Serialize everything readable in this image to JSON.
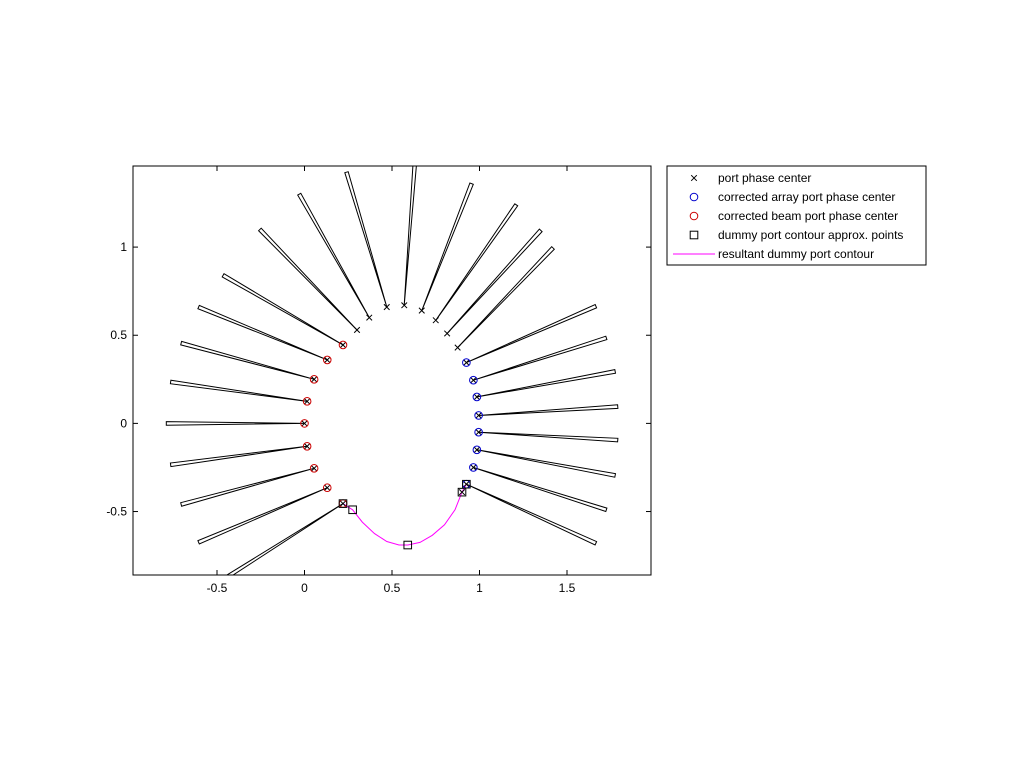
{
  "chart_data": {
    "type": "scatter",
    "title": "",
    "xlabel": "",
    "ylabel": "",
    "xlim": [
      -0.98,
      1.98
    ],
    "ylim": [
      -0.86,
      1.46
    ],
    "xticks": [
      -0.5,
      0,
      0.5,
      1,
      1.5
    ],
    "yticks": [
      -0.5,
      0,
      0.5,
      1
    ],
    "xtick_labels": [
      "-0.5",
      "0",
      "0.5",
      "1",
      "1.5"
    ],
    "ytick_labels": [
      "-0.5",
      "0",
      "0.5",
      "1"
    ],
    "grid": false,
    "legend_position": "outside-top-right",
    "legend": [
      {
        "label": "port phase center",
        "marker": "x",
        "color": "#000000"
      },
      {
        "label": "corrected array port phase center",
        "marker": "circle",
        "color": "#0000cc"
      },
      {
        "label": "corrected beam port phase center",
        "marker": "circle",
        "color": "#cc0000"
      },
      {
        "label": "dummy port contour approx. points",
        "marker": "square",
        "color": "#000000"
      },
      {
        "label": "resultant dummy port contour",
        "marker": "line",
        "color": "#ff00ff"
      }
    ],
    "series": [
      {
        "name": "port phase center",
        "marker": "x",
        "color": "#000000",
        "points": [
          [
            0.22,
            -0.455
          ],
          [
            0.13,
            -0.365
          ],
          [
            0.055,
            -0.255
          ],
          [
            0.015,
            -0.13
          ],
          [
            0.0,
            0.0
          ],
          [
            0.015,
            0.125
          ],
          [
            0.055,
            0.25
          ],
          [
            0.13,
            0.36
          ],
          [
            0.22,
            0.445
          ],
          [
            0.3,
            0.53
          ],
          [
            0.37,
            0.6
          ],
          [
            0.47,
            0.66
          ],
          [
            0.57,
            0.67
          ],
          [
            0.67,
            0.64
          ],
          [
            0.75,
            0.585
          ],
          [
            0.815,
            0.51
          ],
          [
            0.875,
            0.43
          ],
          [
            0.925,
            0.345
          ],
          [
            0.965,
            0.245
          ],
          [
            0.985,
            0.15
          ],
          [
            0.995,
            0.045
          ],
          [
            0.995,
            -0.05
          ],
          [
            0.985,
            -0.15
          ],
          [
            0.965,
            -0.25
          ],
          [
            0.925,
            -0.345
          ],
          [
            0.9,
            -0.39
          ]
        ]
      },
      {
        "name": "corrected array port phase center",
        "marker": "circle",
        "color": "#0000cc",
        "points": [
          [
            0.925,
            0.345
          ],
          [
            0.965,
            0.245
          ],
          [
            0.985,
            0.15
          ],
          [
            0.995,
            0.045
          ],
          [
            0.995,
            -0.05
          ],
          [
            0.985,
            -0.15
          ],
          [
            0.965,
            -0.25
          ],
          [
            0.925,
            -0.345
          ]
        ]
      },
      {
        "name": "corrected beam port phase center",
        "marker": "circle",
        "color": "#cc0000",
        "points": [
          [
            0.22,
            0.445
          ],
          [
            0.13,
            0.36
          ],
          [
            0.055,
            0.25
          ],
          [
            0.015,
            0.125
          ],
          [
            0.0,
            0.0
          ],
          [
            0.015,
            -0.13
          ],
          [
            0.055,
            -0.255
          ],
          [
            0.13,
            -0.365
          ],
          [
            0.22,
            -0.455
          ]
        ]
      },
      {
        "name": "dummy port contour approx. points",
        "marker": "square",
        "color": "#000000",
        "points": [
          [
            0.22,
            -0.455
          ],
          [
            0.275,
            -0.49
          ],
          [
            0.59,
            -0.69
          ],
          [
            0.9,
            -0.39
          ],
          [
            0.925,
            -0.345
          ]
        ]
      },
      {
        "name": "resultant dummy port contour",
        "marker": "line",
        "color": "#ff00ff",
        "points": [
          [
            0.22,
            -0.455
          ],
          [
            0.275,
            -0.49
          ],
          [
            0.33,
            -0.56
          ],
          [
            0.4,
            -0.625
          ],
          [
            0.47,
            -0.67
          ],
          [
            0.54,
            -0.69
          ],
          [
            0.59,
            -0.69
          ],
          [
            0.66,
            -0.675
          ],
          [
            0.73,
            -0.635
          ],
          [
            0.8,
            -0.575
          ],
          [
            0.86,
            -0.49
          ],
          [
            0.9,
            -0.39
          ],
          [
            0.925,
            -0.345
          ]
        ]
      }
    ],
    "horn_outlines": [
      {
        "port": [
          0.22,
          -0.455
        ],
        "tip": [
          -0.465,
          -0.885
        ]
      },
      {
        "port": [
          0.13,
          -0.365
        ],
        "tip": [
          -0.605,
          -0.675
        ]
      },
      {
        "port": [
          0.055,
          -0.255
        ],
        "tip": [
          -0.705,
          -0.46
        ]
      },
      {
        "port": [
          0.015,
          -0.13
        ],
        "tip": [
          -0.765,
          -0.235
        ]
      },
      {
        "port": [
          0.0,
          0.0
        ],
        "tip": [
          -0.79,
          0.0
        ]
      },
      {
        "port": [
          0.015,
          0.125
        ],
        "tip": [
          -0.765,
          0.235
        ]
      },
      {
        "port": [
          0.055,
          0.25
        ],
        "tip": [
          -0.705,
          0.455
        ]
      },
      {
        "port": [
          0.13,
          0.36
        ],
        "tip": [
          -0.605,
          0.66
        ]
      },
      {
        "port": [
          0.22,
          0.445
        ],
        "tip": [
          -0.465,
          0.84
        ]
      },
      {
        "port": [
          0.3,
          0.53
        ],
        "tip": [
          -0.255,
          1.1
        ]
      },
      {
        "port": [
          0.37,
          0.6
        ],
        "tip": [
          -0.03,
          1.3
        ]
      },
      {
        "port": [
          0.47,
          0.66
        ],
        "tip": [
          0.24,
          1.425
        ]
      },
      {
        "port": [
          0.57,
          0.67
        ],
        "tip": [
          0.63,
          1.47
        ]
      },
      {
        "port": [
          0.67,
          0.64
        ],
        "tip": [
          0.955,
          1.36
        ]
      },
      {
        "port": [
          0.75,
          0.585
        ],
        "tip": [
          1.21,
          1.24
        ]
      },
      {
        "port": [
          0.815,
          0.51
        ],
        "tip": [
          1.35,
          1.095
        ]
      },
      {
        "port": [
          0.875,
          0.43
        ],
        "tip": [
          1.42,
          0.995
        ]
      },
      {
        "port": [
          0.925,
          0.345
        ],
        "tip": [
          1.665,
          0.665
        ]
      },
      {
        "port": [
          0.965,
          0.245
        ],
        "tip": [
          1.725,
          0.485
        ]
      },
      {
        "port": [
          0.985,
          0.15
        ],
        "tip": [
          1.775,
          0.295
        ]
      },
      {
        "port": [
          0.995,
          0.045
        ],
        "tip": [
          1.79,
          0.095
        ]
      },
      {
        "port": [
          0.995,
          -0.05
        ],
        "tip": [
          1.79,
          -0.095
        ]
      },
      {
        "port": [
          0.985,
          -0.15
        ],
        "tip": [
          1.775,
          -0.295
        ]
      },
      {
        "port": [
          0.965,
          -0.25
        ],
        "tip": [
          1.725,
          -0.49
        ]
      },
      {
        "port": [
          0.925,
          -0.345
        ],
        "tip": [
          1.665,
          -0.68
        ]
      }
    ]
  }
}
